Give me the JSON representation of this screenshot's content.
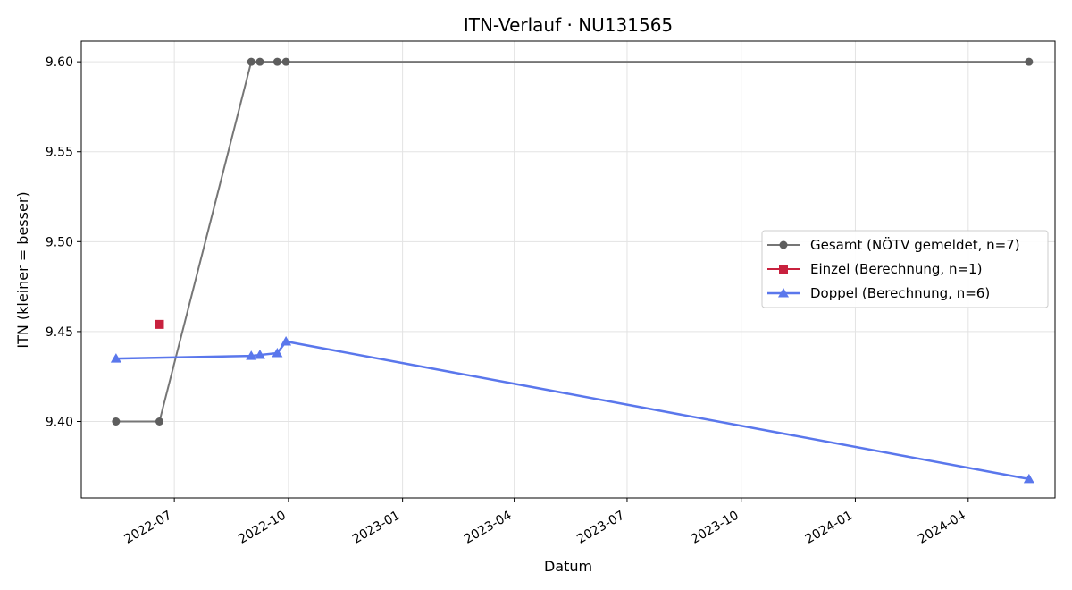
{
  "chart_data": {
    "type": "line",
    "title": "ITN-Verlauf · NU131565",
    "xlabel": "Datum",
    "ylabel": "ITN  (kleiner = besser)",
    "x_type": "date",
    "xlim": [
      "2022-04-17",
      "2024-06-10"
    ],
    "ylim": [
      9.3575,
      9.6115
    ],
    "x_ticks": [
      "2022-07-01",
      "2022-10-01",
      "2023-01-01",
      "2023-04-01",
      "2023-07-01",
      "2023-10-01",
      "2024-01-01",
      "2024-04-01"
    ],
    "x_tick_labels": [
      "2022-07",
      "2022-10",
      "2023-01",
      "2023-04",
      "2023-07",
      "2023-10",
      "2024-01",
      "2024-04"
    ],
    "y_ticks": [
      9.4,
      9.45,
      9.5,
      9.55,
      9.6
    ],
    "y_tick_labels": [
      "9.40",
      "9.45",
      "9.50",
      "9.55",
      "9.60"
    ],
    "grid": true,
    "legend_position": "right",
    "series": [
      {
        "name": "Gesamt (NÖTV gemeldet, n=7)",
        "color": "#767676",
        "marker_color": "#5e5e5e",
        "marker": "circle",
        "points": [
          {
            "x": "2022-05-15",
            "y": 9.4
          },
          {
            "x": "2022-06-19",
            "y": 9.4
          },
          {
            "x": "2022-09-01",
            "y": 9.6
          },
          {
            "x": "2022-09-08",
            "y": 9.6
          },
          {
            "x": "2022-09-22",
            "y": 9.6
          },
          {
            "x": "2022-09-29",
            "y": 9.6
          },
          {
            "x": "2024-05-20",
            "y": 9.6
          }
        ]
      },
      {
        "name": "Einzel (Berechnung, n=1)",
        "color": "#c8213e",
        "marker_color": "#c8213e",
        "marker": "square",
        "points": [
          {
            "x": "2022-06-19",
            "y": 9.454
          }
        ]
      },
      {
        "name": "Doppel (Berechnung, n=6)",
        "color": "#5a77ec",
        "marker_color": "#5a77ec",
        "marker": "triangle",
        "points": [
          {
            "x": "2022-05-15",
            "y": 9.435
          },
          {
            "x": "2022-09-01",
            "y": 9.4365
          },
          {
            "x": "2022-09-08",
            "y": 9.437
          },
          {
            "x": "2022-09-22",
            "y": 9.438
          },
          {
            "x": "2022-09-29",
            "y": 9.4445
          },
          {
            "x": "2024-05-20",
            "y": 9.368
          }
        ]
      }
    ]
  }
}
